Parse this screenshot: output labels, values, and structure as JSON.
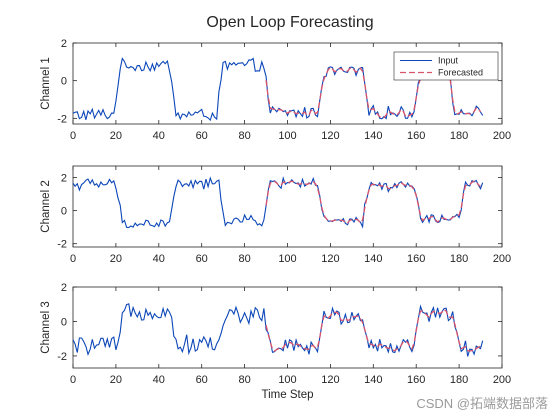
{
  "figure": {
    "title": "Open Loop Forecasting",
    "watermark": "CSDN @拓端数据部落"
  },
  "colors": {
    "input": "#0b47b8",
    "forecast": "#d9536a",
    "axis": "#262626"
  },
  "chart_data": [
    {
      "type": "line",
      "ylabel": "Channel 1",
      "xlabel": "",
      "xlim": [
        0,
        200
      ],
      "ylim": [
        -2.3,
        2
      ],
      "xticks": [
        0,
        20,
        40,
        60,
        80,
        100,
        120,
        140,
        160,
        180,
        200
      ],
      "yticks": [
        -2,
        0,
        2
      ],
      "legend": {
        "position": "top-right",
        "entries": [
          "Input",
          "Forecasted"
        ]
      },
      "input_levels": [
        -1.8,
        0.8,
        -1.8,
        0.8,
        -1.7,
        0.5,
        -1.7,
        0.5,
        -1.7
      ],
      "segment_bounds": [
        0,
        20,
        46,
        68,
        90,
        115,
        136,
        160,
        176,
        192
      ],
      "input_noise": 0.3,
      "forecast_start": 90,
      "forecast_end": 190,
      "series": [
        {
          "name": "Input",
          "style": "solid"
        },
        {
          "name": "Forecasted",
          "style": "dashed"
        }
      ]
    },
    {
      "type": "line",
      "ylabel": "Channel 2",
      "xlabel": "",
      "xlim": [
        0,
        200
      ],
      "ylim": [
        -2.2,
        2.7
      ],
      "xticks": [
        0,
        20,
        40,
        60,
        80,
        100,
        120,
        140,
        160,
        180,
        200
      ],
      "yticks": [
        -2,
        0,
        2
      ],
      "input_levels": [
        1.6,
        -0.8,
        1.6,
        -0.6,
        1.7,
        -0.7,
        1.5,
        -0.5,
        1.6
      ],
      "segment_bounds": [
        0,
        21,
        46,
        69,
        90,
        115,
        136,
        160,
        181,
        192
      ],
      "input_noise": 0.3,
      "forecast_start": 90,
      "forecast_end": 190,
      "series": [
        {
          "name": "Input",
          "style": "solid"
        },
        {
          "name": "Forecasted",
          "style": "dashed"
        }
      ]
    },
    {
      "type": "line",
      "ylabel": "Channel 3",
      "xlabel": "Time Step",
      "xlim": [
        0,
        200
      ],
      "ylim": [
        -2.7,
        2
      ],
      "xticks": [
        0,
        20,
        40,
        60,
        80,
        100,
        120,
        140,
        160,
        180,
        200
      ],
      "yticks": [
        -2,
        0,
        2
      ],
      "input_levels": [
        -1.4,
        0.6,
        -1.3,
        0.4,
        -1.5,
        0.3,
        -1.4,
        0.5,
        -1.6
      ],
      "segment_bounds": [
        0,
        22,
        46,
        69,
        90,
        115,
        136,
        160,
        178,
        192
      ],
      "input_noise": 0.45,
      "forecast_start": 90,
      "forecast_end": 190,
      "series": [
        {
          "name": "Input",
          "style": "solid"
        },
        {
          "name": "Forecasted",
          "style": "dashed"
        }
      ]
    }
  ]
}
